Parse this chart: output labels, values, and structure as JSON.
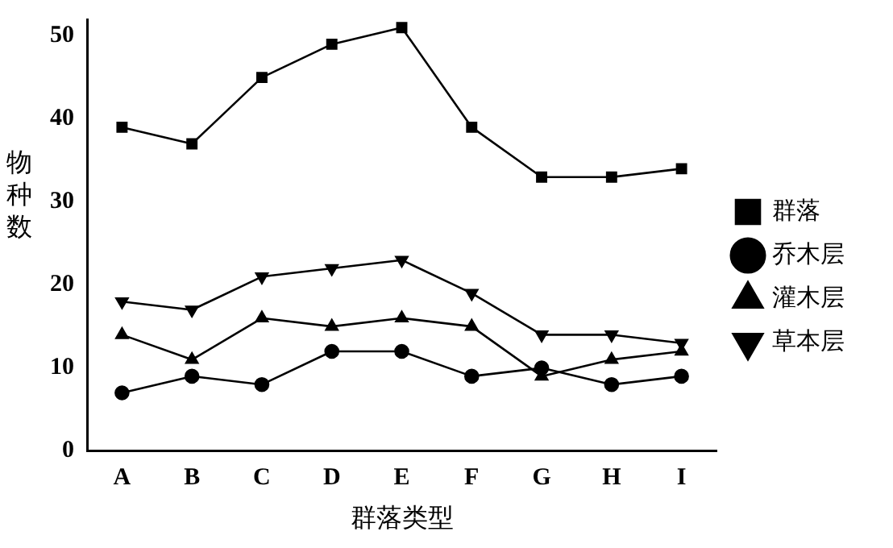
{
  "chart_data": {
    "type": "line",
    "xlabel": "群落类型",
    "ylabel": "物种数",
    "categories": [
      "A",
      "B",
      "C",
      "D",
      "E",
      "F",
      "G",
      "H",
      "I"
    ],
    "series": [
      {
        "name": "群落",
        "color": "#000000",
        "marker": "square",
        "values": [
          39,
          37,
          45,
          49,
          51,
          39,
          33,
          33,
          34
        ]
      },
      {
        "name": "乔木层",
        "color": "#000000",
        "marker": "circle",
        "values": [
          7,
          9,
          8,
          12,
          12,
          9,
          10,
          8,
          9
        ]
      },
      {
        "name": "灌木层",
        "color": "#000000",
        "marker": "triangle",
        "values": [
          14,
          11,
          16,
          15,
          16,
          15,
          9,
          11,
          12
        ]
      },
      {
        "name": "草本层",
        "color": "#000000",
        "marker": "triangle-down",
        "values": [
          18,
          17,
          21,
          22,
          23,
          19,
          14,
          14,
          13
        ]
      }
    ],
    "ylim": [
      0,
      52
    ],
    "yticks": [
      0,
      10,
      20,
      30,
      40,
      50
    ],
    "grid": false,
    "legend": "right",
    "line_style": "solid"
  }
}
